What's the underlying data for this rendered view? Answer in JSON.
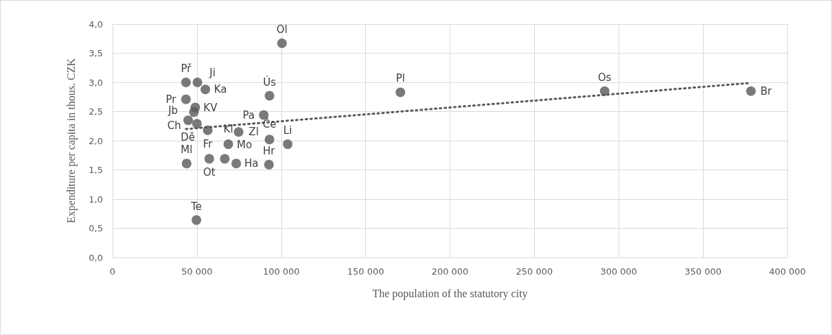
{
  "chart_data": {
    "type": "scatter",
    "xlabel": "The population of the statutory city",
    "ylabel": "Expenditure per capita in thous. CZK",
    "series": [
      {
        "type": "scatter",
        "color": "#595959",
        "marker": "circle",
        "x": [
          43500,
          50300,
          55000,
          43500,
          49000,
          48200,
          44800,
          50000,
          56400,
          74700,
          89600,
          93000,
          100400,
          43900,
          57300,
          66500,
          68600,
          73300,
          92700,
          103800,
          93000,
          49700,
          170600,
          291700,
          378400
        ],
        "values": [
          3.0,
          3.0,
          2.88,
          2.71,
          2.57,
          2.49,
          2.35,
          2.29,
          2.18,
          2.15,
          2.44,
          2.77,
          3.67,
          1.61,
          1.69,
          1.69,
          1.94,
          1.61,
          1.59,
          1.94,
          2.02,
          0.64,
          2.83,
          2.85,
          2.85
        ]
      },
      {
        "type": "line",
        "color": "#595959",
        "line_style": "dotted",
        "marker": "none",
        "x": [
          43500,
          378000
        ],
        "values": [
          2.2,
          2.99
        ]
      }
    ],
    "annotations": [
      {
        "text": "Př",
        "x": 43500,
        "y": 3.0
      },
      {
        "text": "Ji",
        "x": 50300,
        "y": 3.0
      },
      {
        "text": "Ka",
        "x": 55000,
        "y": 2.88
      },
      {
        "text": "Pr",
        "x": 43500,
        "y": 2.71
      },
      {
        "text": "KV",
        "x": 49000,
        "y": 2.57
      },
      {
        "text": "Ch",
        "x": 48200,
        "y": 2.49
      },
      {
        "text": "Jb",
        "x": 44800,
        "y": 2.35
      },
      {
        "text": "Dě",
        "x": 50000,
        "y": 2.29
      },
      {
        "text": "Fr",
        "x": 56400,
        "y": 2.18
      },
      {
        "text": "Zl",
        "x": 74700,
        "y": 2.15
      },
      {
        "text": "Pa",
        "x": 89600,
        "y": 2.44
      },
      {
        "text": "Ús",
        "x": 93000,
        "y": 2.77
      },
      {
        "text": "Ol",
        "x": 100400,
        "y": 3.67
      },
      {
        "text": "Ml",
        "x": 43900,
        "y": 1.61
      },
      {
        "text": "Ot",
        "x": 57300,
        "y": 1.69
      },
      {
        "text": "Mo",
        "x": 66500,
        "y": 1.69
      },
      {
        "text": "Kl",
        "x": 68600,
        "y": 1.94
      },
      {
        "text": "Ha",
        "x": 73300,
        "y": 1.61
      },
      {
        "text": "Hr",
        "x": 92700,
        "y": 1.59
      },
      {
        "text": "Li",
        "x": 103800,
        "y": 1.94
      },
      {
        "text": "Če",
        "x": 93000,
        "y": 2.02
      },
      {
        "text": "Te",
        "x": 49700,
        "y": 0.64
      },
      {
        "text": "Pl",
        "x": 170600,
        "y": 2.83
      },
      {
        "text": "Os",
        "x": 291700,
        "y": 2.85
      },
      {
        "text": "Br",
        "x": 378400,
        "y": 2.85
      }
    ],
    "xlim": [
      0,
      400000
    ],
    "xticks": [
      0,
      {
        "value": 50000,
        "label": "50 000"
      },
      {
        "value": 100000,
        "label": "100 000"
      },
      {
        "value": 150000,
        "label": "150 000"
      },
      {
        "value": 200000,
        "label": "200 000"
      },
      {
        "value": 250000,
        "label": "250 000"
      },
      {
        "value": 300000,
        "label": "300 000"
      },
      {
        "value": 350000,
        "label": "350 000"
      },
      {
        "value": 400000,
        "label": "400 000"
      }
    ],
    "ylim": [
      0,
      4
    ],
    "yticks": [
      {
        "value": 0,
        "label": "0,0"
      },
      {
        "value": 0.5,
        "label": "0,5"
      },
      {
        "value": 1,
        "label": "1,0"
      },
      {
        "value": 1.5,
        "label": "1,5"
      },
      {
        "value": 2,
        "label": "2,0"
      },
      {
        "value": 2.5,
        "label": "2,5"
      },
      {
        "value": 3,
        "label": "3,0"
      },
      {
        "value": 3.5,
        "label": "3,5"
      },
      {
        "value": 4,
        "label": "4,0"
      }
    ],
    "grid": true
  }
}
